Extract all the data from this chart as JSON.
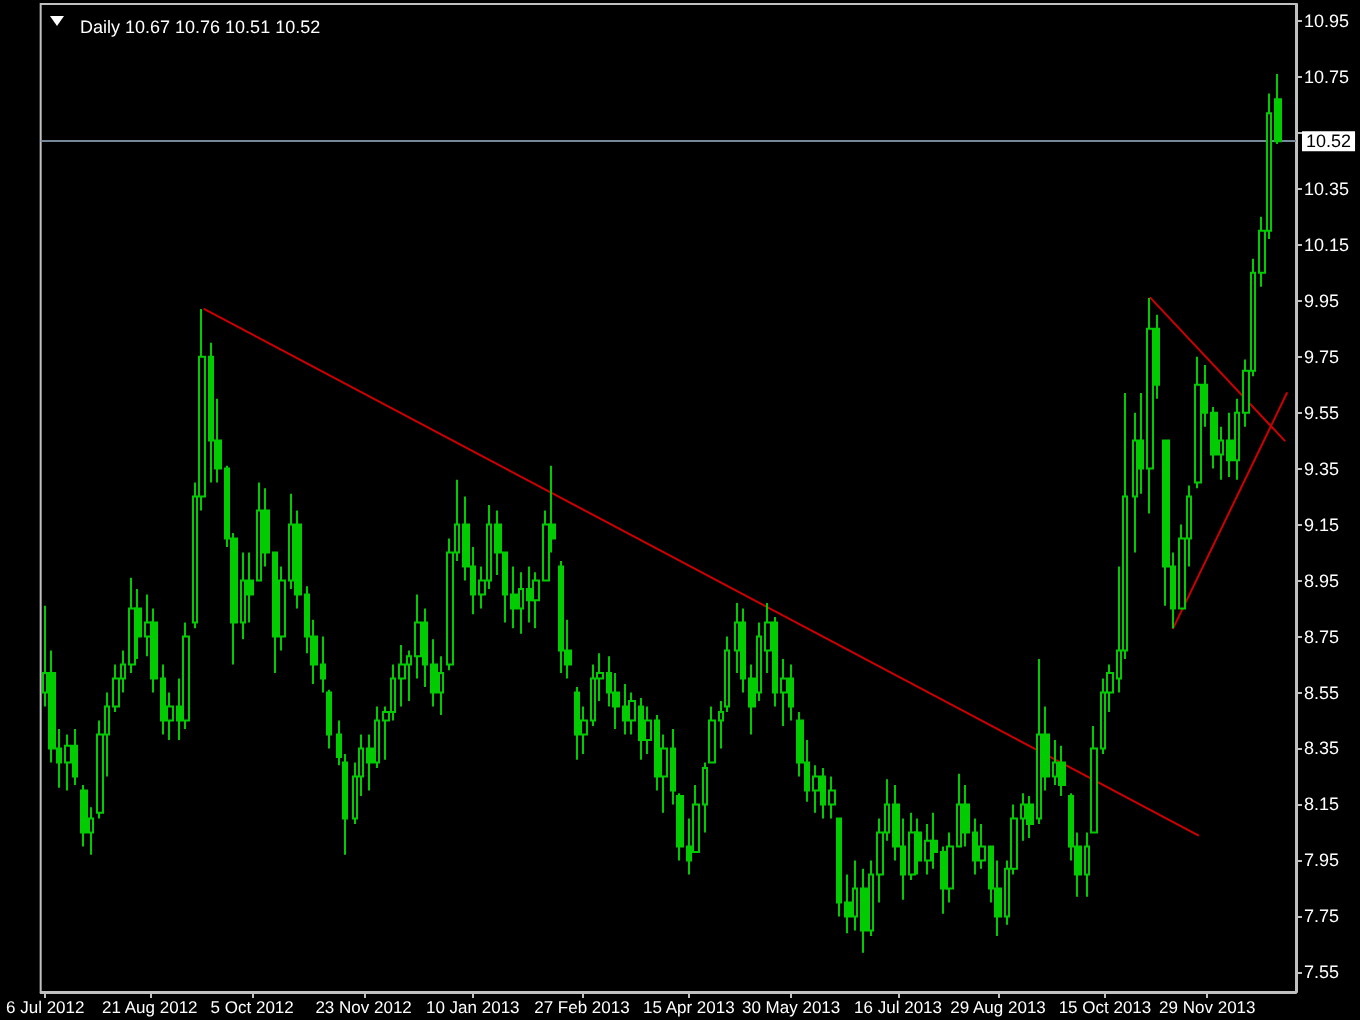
{
  "chart_data": {
    "type": "candlestick",
    "title": "Daily 10.67 10.76 10.51 10.52",
    "color": "#00cc00",
    "x": [
      "2012-07-06",
      "2012-07-09",
      "2012-07-12",
      "2012-07-16",
      "2012-07-19",
      "2012-07-23",
      "2012-07-26",
      "2012-07-30",
      "2012-08-02",
      "2012-08-06",
      "2012-08-09",
      "2012-08-13",
      "2012-08-16",
      "2012-08-20",
      "2012-08-23",
      "2012-08-27",
      "2012-08-30",
      "2012-09-03",
      "2012-09-06",
      "2012-09-10",
      "2012-09-13",
      "2012-09-17",
      "2012-09-20",
      "2012-09-24",
      "2012-09-27",
      "2012-10-01",
      "2012-10-04",
      "2012-10-08",
      "2012-10-11",
      "2012-10-15",
      "2012-10-18",
      "2012-10-22",
      "2012-10-25",
      "2012-10-29",
      "2012-11-01",
      "2012-11-05",
      "2012-11-08",
      "2012-11-12",
      "2012-11-15",
      "2012-11-19",
      "2012-11-22",
      "2012-11-26",
      "2012-11-29",
      "2012-12-03",
      "2012-12-06",
      "2012-12-10",
      "2012-12-13",
      "2012-12-17",
      "2012-12-20",
      "2012-12-24",
      "2012-12-27",
      "2012-12-31",
      "2013-01-03",
      "2013-01-07",
      "2013-01-10",
      "2013-01-14",
      "2013-01-17",
      "2013-01-21",
      "2013-01-24",
      "2013-01-28",
      "2013-01-31",
      "2013-02-04",
      "2013-02-07",
      "2013-02-11",
      "2013-02-14",
      "2013-02-18",
      "2013-02-21",
      "2013-02-25",
      "2013-02-28",
      "2013-03-04",
      "2013-03-07",
      "2013-03-11",
      "2013-03-14",
      "2013-03-18",
      "2013-03-21",
      "2013-03-25",
      "2013-03-28",
      "2013-04-01",
      "2013-04-04",
      "2013-04-08",
      "2013-04-11",
      "2013-04-15",
      "2013-04-18",
      "2013-04-22",
      "2013-04-25",
      "2013-04-29",
      "2013-05-02",
      "2013-05-06",
      "2013-05-09",
      "2013-05-13",
      "2013-05-16",
      "2013-05-20",
      "2013-05-23",
      "2013-05-27",
      "2013-05-30",
      "2013-06-03",
      "2013-06-06",
      "2013-06-10",
      "2013-06-13",
      "2013-06-17",
      "2013-06-20",
      "2013-06-24",
      "2013-06-27",
      "2013-07-01",
      "2013-07-04",
      "2013-07-08",
      "2013-07-11",
      "2013-07-15",
      "2013-07-18",
      "2013-07-22",
      "2013-07-25",
      "2013-07-29",
      "2013-08-01",
      "2013-08-05",
      "2013-08-08",
      "2013-08-12",
      "2013-08-15",
      "2013-08-19",
      "2013-08-22",
      "2013-08-26",
      "2013-08-29",
      "2013-09-02",
      "2013-09-05",
      "2013-09-09",
      "2013-09-12",
      "2013-09-16",
      "2013-09-19",
      "2013-09-23",
      "2013-09-26",
      "2013-09-30",
      "2013-10-03",
      "2013-10-07",
      "2013-10-10",
      "2013-10-14",
      "2013-10-17",
      "2013-10-21",
      "2013-10-24",
      "2013-10-28",
      "2013-10-31",
      "2013-11-04",
      "2013-11-07",
      "2013-11-11",
      "2013-11-14",
      "2013-11-18",
      "2013-11-21",
      "2013-11-25",
      "2013-11-28",
      "2013-12-02",
      "2013-12-05",
      "2013-12-09",
      "2013-12-12",
      "2013-12-16",
      "2013-12-19",
      "2013-12-23",
      "2013-12-26",
      "2013-12-30"
    ],
    "ohlc": [
      [
        8.55,
        8.86,
        8.5,
        8.62
      ],
      [
        8.62,
        8.7,
        8.3,
        8.35
      ],
      [
        8.35,
        8.42,
        8.21,
        8.3
      ],
      [
        8.3,
        8.4,
        8.2,
        8.36
      ],
      [
        8.36,
        8.42,
        8.22,
        8.25
      ],
      [
        8.2,
        8.22,
        8.0,
        8.05
      ],
      [
        8.05,
        8.14,
        7.97,
        8.1
      ],
      [
        8.12,
        8.45,
        8.1,
        8.4
      ],
      [
        8.4,
        8.55,
        8.25,
        8.5
      ],
      [
        8.5,
        8.65,
        8.48,
        8.6
      ],
      [
        8.6,
        8.7,
        8.55,
        8.65
      ],
      [
        8.65,
        8.96,
        8.62,
        8.85
      ],
      [
        8.85,
        8.92,
        8.67,
        8.75
      ],
      [
        8.75,
        8.9,
        8.68,
        8.8
      ],
      [
        8.8,
        8.85,
        8.55,
        8.6
      ],
      [
        8.6,
        8.65,
        8.4,
        8.45
      ],
      [
        8.45,
        8.55,
        8.38,
        8.5
      ],
      [
        8.5,
        8.6,
        8.38,
        8.45
      ],
      [
        8.45,
        8.8,
        8.42,
        8.75
      ],
      [
        8.8,
        9.3,
        8.78,
        9.25
      ],
      [
        9.25,
        9.92,
        9.2,
        9.75
      ],
      [
        9.75,
        9.8,
        9.3,
        9.45
      ],
      [
        9.45,
        9.6,
        9.3,
        9.35
      ],
      [
        9.35,
        9.36,
        9.07,
        9.1
      ],
      [
        9.1,
        9.12,
        8.65,
        8.8
      ],
      [
        8.8,
        9.05,
        8.74,
        8.95
      ],
      [
        8.95,
        9.05,
        8.8,
        8.9
      ],
      [
        8.95,
        9.3,
        8.95,
        9.2
      ],
      [
        9.2,
        9.28,
        9.0,
        9.05
      ],
      [
        9.05,
        9.05,
        8.62,
        8.75
      ],
      [
        8.75,
        9.0,
        8.7,
        8.95
      ],
      [
        8.95,
        9.26,
        8.92,
        9.15
      ],
      [
        9.15,
        9.2,
        8.85,
        8.9
      ],
      [
        8.9,
        8.93,
        8.69,
        8.75
      ],
      [
        8.75,
        8.81,
        8.58,
        8.65
      ],
      [
        8.65,
        8.75,
        8.55,
        8.6
      ],
      [
        8.55,
        8.56,
        8.35,
        8.4
      ],
      [
        8.4,
        8.45,
        8.29,
        8.32
      ],
      [
        8.3,
        8.33,
        7.97,
        8.1
      ],
      [
        8.1,
        8.3,
        8.08,
        8.25
      ],
      [
        8.25,
        8.4,
        8.18,
        8.35
      ],
      [
        8.35,
        8.4,
        8.2,
        8.3
      ],
      [
        8.3,
        8.5,
        8.28,
        8.45
      ],
      [
        8.45,
        8.5,
        8.31,
        8.48
      ],
      [
        8.48,
        8.65,
        8.45,
        8.6
      ],
      [
        8.6,
        8.72,
        8.5,
        8.65
      ],
      [
        8.65,
        8.7,
        8.52,
        8.68
      ],
      [
        8.68,
        8.9,
        8.6,
        8.8
      ],
      [
        8.8,
        8.85,
        8.57,
        8.65
      ],
      [
        8.65,
        8.74,
        8.5,
        8.55
      ],
      [
        8.55,
        8.68,
        8.47,
        8.62
      ],
      [
        8.65,
        9.1,
        8.63,
        9.05
      ],
      [
        9.05,
        9.31,
        9.02,
        9.15
      ],
      [
        9.15,
        9.25,
        8.95,
        9.0
      ],
      [
        9.0,
        9.07,
        8.83,
        8.9
      ],
      [
        8.9,
        9.0,
        8.85,
        8.95
      ],
      [
        8.95,
        9.22,
        8.92,
        9.15
      ],
      [
        9.15,
        9.2,
        8.97,
        9.05
      ],
      [
        9.05,
        9.05,
        8.8,
        8.9
      ],
      [
        8.9,
        9.0,
        8.78,
        8.85
      ],
      [
        8.85,
        8.98,
        8.76,
        8.92
      ],
      [
        8.92,
        9.0,
        8.8,
        8.88
      ],
      [
        8.88,
        8.98,
        8.78,
        8.95
      ],
      [
        8.95,
        9.2,
        8.95,
        9.15
      ],
      [
        9.15,
        9.36,
        9.05,
        9.1
      ],
      [
        9.0,
        9.02,
        8.62,
        8.7
      ],
      [
        8.7,
        8.81,
        8.6,
        8.65
      ],
      [
        8.55,
        8.57,
        8.31,
        8.4
      ],
      [
        8.4,
        8.5,
        8.33,
        8.45
      ],
      [
        8.45,
        8.65,
        8.43,
        8.6
      ],
      [
        8.6,
        8.69,
        8.52,
        8.62
      ],
      [
        8.62,
        8.68,
        8.5,
        8.55
      ],
      [
        8.55,
        8.62,
        8.42,
        8.5
      ],
      [
        8.5,
        8.58,
        8.4,
        8.45
      ],
      [
        8.45,
        8.55,
        8.4,
        8.52
      ],
      [
        8.5,
        8.53,
        8.31,
        8.38
      ],
      [
        8.38,
        8.5,
        8.33,
        8.45
      ],
      [
        8.45,
        8.47,
        8.2,
        8.25
      ],
      [
        8.25,
        8.4,
        8.12,
        8.35
      ],
      [
        8.35,
        8.42,
        8.15,
        8.2
      ],
      [
        8.18,
        8.19,
        7.95,
        8.0
      ],
      [
        8.0,
        8.1,
        7.9,
        7.95
      ],
      [
        7.98,
        8.22,
        7.98,
        8.15
      ],
      [
        8.15,
        8.3,
        8.05,
        8.28
      ],
      [
        8.3,
        8.5,
        8.3,
        8.45
      ],
      [
        8.45,
        8.52,
        8.35,
        8.48
      ],
      [
        8.5,
        8.75,
        8.48,
        8.7
      ],
      [
        8.7,
        8.87,
        8.62,
        8.8
      ],
      [
        8.8,
        8.85,
        8.55,
        8.6
      ],
      [
        8.6,
        8.65,
        8.4,
        8.5
      ],
      [
        8.55,
        8.8,
        8.52,
        8.75
      ],
      [
        8.7,
        8.87,
        8.62,
        8.8
      ],
      [
        8.8,
        8.82,
        8.5,
        8.55
      ],
      [
        8.55,
        8.67,
        8.43,
        8.6
      ],
      [
        8.6,
        8.65,
        8.45,
        8.5
      ],
      [
        8.45,
        8.48,
        8.25,
        8.3
      ],
      [
        8.3,
        8.38,
        8.16,
        8.2
      ],
      [
        8.2,
        8.29,
        8.12,
        8.25
      ],
      [
        8.25,
        8.28,
        8.1,
        8.15
      ],
      [
        8.15,
        8.25,
        8.1,
        8.2
      ],
      [
        8.1,
        8.1,
        7.75,
        7.8
      ],
      [
        7.8,
        7.9,
        7.69,
        7.75
      ],
      [
        7.75,
        7.95,
        7.7,
        7.85
      ],
      [
        7.85,
        7.92,
        7.62,
        7.7
      ],
      [
        7.7,
        7.95,
        7.68,
        7.9
      ],
      [
        7.9,
        8.1,
        7.8,
        8.05
      ],
      [
        8.05,
        8.24,
        8.02,
        8.15
      ],
      [
        8.15,
        8.22,
        7.95,
        8.0
      ],
      [
        8.0,
        8.1,
        7.81,
        7.9
      ],
      [
        7.9,
        8.12,
        7.88,
        8.05
      ],
      [
        8.05,
        8.1,
        7.9,
        7.95
      ],
      [
        7.95,
        8.08,
        7.9,
        8.02
      ],
      [
        8.02,
        8.12,
        7.92,
        7.98
      ],
      [
        7.98,
        8.0,
        7.76,
        7.85
      ],
      [
        7.85,
        8.05,
        7.8,
        8.0
      ],
      [
        8.0,
        8.26,
        8.0,
        8.15
      ],
      [
        8.15,
        8.22,
        8.0,
        8.05
      ],
      [
        8.05,
        8.1,
        7.9,
        7.95
      ],
      [
        7.95,
        8.08,
        7.92,
        8.0
      ],
      [
        8.0,
        8.0,
        7.8,
        7.85
      ],
      [
        7.85,
        7.95,
        7.68,
        7.75
      ],
      [
        7.75,
        7.95,
        7.72,
        7.92
      ],
      [
        7.92,
        8.15,
        7.9,
        8.1
      ],
      [
        8.1,
        8.19,
        8.02,
        8.15
      ],
      [
        8.15,
        8.18,
        8.03,
        8.08
      ],
      [
        8.1,
        8.67,
        8.08,
        8.4
      ],
      [
        8.4,
        8.5,
        8.2,
        8.25
      ],
      [
        8.25,
        8.38,
        8.22,
        8.3
      ],
      [
        8.3,
        8.36,
        8.18,
        8.22
      ],
      [
        8.18,
        8.19,
        7.95,
        8.0
      ],
      [
        8.0,
        8.05,
        7.82,
        7.9
      ],
      [
        7.9,
        8.05,
        7.82,
        8.0
      ],
      [
        8.05,
        8.43,
        8.05,
        8.35
      ],
      [
        8.35,
        8.6,
        8.33,
        8.55
      ],
      [
        8.55,
        8.65,
        8.48,
        8.62
      ],
      [
        8.6,
        9.0,
        8.55,
        8.7
      ],
      [
        8.7,
        9.62,
        8.67,
        9.25
      ],
      [
        9.25,
        9.55,
        9.05,
        9.45
      ],
      [
        9.45,
        9.62,
        9.26,
        9.35
      ],
      [
        9.35,
        9.96,
        9.19,
        9.85
      ],
      [
        9.85,
        9.9,
        9.6,
        9.65
      ],
      [
        9.45,
        9.45,
        8.86,
        9.0
      ],
      [
        9.0,
        9.05,
        8.78,
        8.85
      ],
      [
        8.85,
        9.15,
        8.85,
        9.1
      ],
      [
        9.1,
        9.29,
        9.0,
        9.25
      ],
      [
        9.3,
        9.75,
        9.28,
        9.65
      ],
      [
        9.65,
        9.72,
        9.5,
        9.55
      ],
      [
        9.55,
        9.57,
        9.35,
        9.4
      ],
      [
        9.4,
        9.5,
        9.31,
        9.45
      ],
      [
        9.45,
        9.55,
        9.32,
        9.38
      ],
      [
        9.38,
        9.6,
        9.31,
        9.55
      ],
      [
        9.55,
        9.74,
        9.5,
        9.7
      ],
      [
        9.7,
        10.1,
        9.68,
        10.05
      ],
      [
        10.05,
        10.25,
        10.0,
        10.2
      ],
      [
        10.2,
        10.69,
        10.17,
        10.62
      ],
      [
        10.67,
        10.76,
        10.51,
        10.52
      ]
    ],
    "series": [
      {
        "type": "line",
        "color": "#cc0000",
        "x": [
          "2012-09-14",
          "2013-11-25"
        ],
        "values": [
          9.92,
          8.04
        ]
      },
      {
        "type": "line",
        "color": "#cc0000",
        "x": [
          "2013-11-04",
          "2014-01-02"
        ],
        "values": [
          9.96,
          9.45
        ]
      },
      {
        "type": "line",
        "color": "#cc0000",
        "x": [
          "2013-11-14",
          "2014-01-03"
        ],
        "values": [
          8.78,
          9.62
        ]
      }
    ],
    "xlim": [
      "2012-07-04",
      "2014-01-07"
    ],
    "xticks": [
      {
        "value": "2012-07-06",
        "label": "6 Jul 2012"
      },
      {
        "value": "2012-08-21",
        "label": "21 Aug 2012"
      },
      {
        "value": "2012-10-05",
        "label": "5 Oct 2012"
      },
      {
        "value": "2012-11-23",
        "label": "23 Nov 2012"
      },
      {
        "value": "2013-01-10",
        "label": "10 Jan 2013"
      },
      {
        "value": "2013-02-27",
        "label": "27 Feb 2013"
      },
      {
        "value": "2013-04-15",
        "label": "15 Apr 2013"
      },
      {
        "value": "2013-05-30",
        "label": "30 May 2013"
      },
      {
        "value": "2013-07-16",
        "label": "16 Jul 2013"
      },
      {
        "value": "2013-08-29",
        "label": "29 Aug 2013"
      },
      {
        "value": "2013-10-15",
        "label": "15 Oct 2013"
      },
      {
        "value": "2013-11-29",
        "label": "29 Nov 2013"
      }
    ],
    "ylim": [
      7.48,
      11.01
    ],
    "yticks": [
      7.55,
      7.75,
      7.95,
      8.15,
      8.35,
      8.55,
      8.75,
      8.95,
      9.15,
      9.35,
      9.55,
      9.75,
      9.95,
      10.15,
      10.35,
      {
        "value": 10.55,
        "label": null
      },
      10.75,
      10.95
    ],
    "ref_lines": [
      {
        "axis": "y",
        "value": 10.52,
        "label": "10.52",
        "color": "#778899"
      }
    ]
  }
}
